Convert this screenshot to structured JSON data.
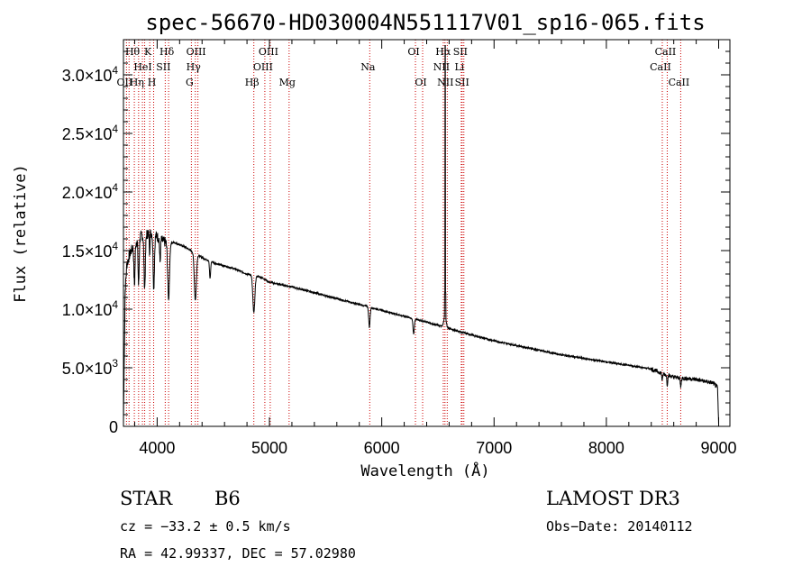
{
  "chart_data": {
    "type": "line",
    "title": "spec-56670-HD030004N551117V01_sp16-065.fits",
    "xlabel": "Wavelength (Å)",
    "ylabel": "Flux (relative)",
    "xlim": [
      3700,
      9100
    ],
    "ylim": [
      0,
      33000
    ],
    "x_ticks": [
      4000,
      5000,
      6000,
      7000,
      8000,
      9000
    ],
    "y_ticks": [
      {
        "value": 0,
        "mantissa": "0",
        "exp": ""
      },
      {
        "value": 5000,
        "mantissa": "5.0×10",
        "exp": "3"
      },
      {
        "value": 10000,
        "mantissa": "1.0×10",
        "exp": "4"
      },
      {
        "value": 15000,
        "mantissa": "1.5×10",
        "exp": "4"
      },
      {
        "value": 20000,
        "mantissa": "2.0×10",
        "exp": "4"
      },
      {
        "value": 25000,
        "mantissa": "2.5×10",
        "exp": "4"
      },
      {
        "value": 30000,
        "mantissa": "3.0×10",
        "exp": "4"
      }
    ],
    "continuum": [
      [
        3700,
        200
      ],
      [
        3705,
        4000
      ],
      [
        3715,
        11500
      ],
      [
        3730,
        13800
      ],
      [
        3760,
        14800
      ],
      [
        3800,
        15600
      ],
      [
        3850,
        16200
      ],
      [
        3900,
        16400
      ],
      [
        3950,
        16500
      ],
      [
        4000,
        16200
      ],
      [
        4050,
        15800
      ],
      [
        4100,
        15600
      ],
      [
        4150,
        15700
      ],
      [
        4200,
        15500
      ],
      [
        4250,
        15300
      ],
      [
        4300,
        15000
      ],
      [
        4350,
        14700
      ],
      [
        4400,
        14400
      ],
      [
        4450,
        14200
      ],
      [
        4500,
        14000
      ],
      [
        4550,
        13800
      ],
      [
        4600,
        13700
      ],
      [
        4650,
        13550
      ],
      [
        4700,
        13400
      ],
      [
        4750,
        13200
      ],
      [
        4800,
        13000
      ],
      [
        4860,
        12900
      ],
      [
        4900,
        12800
      ],
      [
        4950,
        12600
      ],
      [
        5000,
        12300
      ],
      [
        5200,
        11900
      ],
      [
        5400,
        11400
      ],
      [
        5600,
        10900
      ],
      [
        5800,
        10400
      ],
      [
        6000,
        9900
      ],
      [
        6200,
        9400
      ],
      [
        6400,
        8900
      ],
      [
        6600,
        8350
      ],
      [
        6800,
        7800
      ],
      [
        7000,
        7300
      ],
      [
        7200,
        6900
      ],
      [
        7400,
        6500
      ],
      [
        7600,
        6100
      ],
      [
        7800,
        5800
      ],
      [
        8000,
        5500
      ],
      [
        8200,
        5200
      ],
      [
        8400,
        4900
      ],
      [
        8500,
        4500
      ],
      [
        8600,
        4200
      ],
      [
        8800,
        4000
      ],
      [
        8950,
        3700
      ],
      [
        8990,
        3300
      ],
      [
        9000,
        200
      ]
    ],
    "absorption_lines": [
      {
        "center": 3798,
        "depth": 3500,
        "width": 5
      },
      {
        "center": 3835,
        "depth": 4000,
        "width": 5
      },
      {
        "center": 3889,
        "depth": 4500,
        "width": 6
      },
      {
        "center": 3933,
        "depth": 1500,
        "width": 3
      },
      {
        "center": 3970,
        "depth": 4500,
        "width": 6
      },
      {
        "center": 4026,
        "depth": 2000,
        "width": 4
      },
      {
        "center": 4102,
        "depth": 4800,
        "width": 8
      },
      {
        "center": 4340,
        "depth": 4000,
        "width": 9
      },
      {
        "center": 4471,
        "depth": 1500,
        "width": 5
      },
      {
        "center": 4861,
        "depth": 3200,
        "width": 9
      },
      {
        "center": 5890,
        "depth": 1700,
        "width": 6
      },
      {
        "center": 6284,
        "depth": 1300,
        "width": 6
      },
      {
        "center": 6563,
        "depth": -1000,
        "width": 10
      },
      {
        "center": 8498,
        "depth": 600,
        "width": 4
      },
      {
        "center": 8542,
        "depth": 800,
        "width": 4
      },
      {
        "center": 8662,
        "depth": 800,
        "width": 4
      }
    ],
    "spike": {
      "wavelength": 6565,
      "peak": 32500,
      "base": 8400
    },
    "spectral_lines": [
      {
        "wavelength": 3727,
        "label": "OII",
        "row": 2
      },
      {
        "wavelength": 3750,
        "label": "",
        "row": 0
      },
      {
        "wavelength": 3797,
        "label": "Hθ",
        "row": 0
      },
      {
        "wavelength": 3835,
        "label": "Hη",
        "row": 2
      },
      {
        "wavelength": 3869,
        "label": "",
        "row": 0
      },
      {
        "wavelength": 3889,
        "label": "HeI",
        "row": 1
      },
      {
        "wavelength": 3934,
        "label": "K",
        "row": 0
      },
      {
        "wavelength": 3969,
        "label": "H",
        "row": 2
      },
      {
        "wavelength": 4072,
        "label": "SII",
        "row": 1
      },
      {
        "wavelength": 4102,
        "label": "Hδ",
        "row": 0
      },
      {
        "wavelength": 4305,
        "label": "G",
        "row": 2
      },
      {
        "wavelength": 4340,
        "label": "Hγ",
        "row": 1
      },
      {
        "wavelength": 4363,
        "label": "OIII",
        "row": 0
      },
      {
        "wavelength": 4861,
        "label": "Hβ",
        "row": 2
      },
      {
        "wavelength": 4959,
        "label": "OIII",
        "row": 1
      },
      {
        "wavelength": 5007,
        "label": "OIII",
        "row": 0
      },
      {
        "wavelength": 5175,
        "label": "Mg",
        "row": 2
      },
      {
        "wavelength": 5893,
        "label": "Na",
        "row": 1
      },
      {
        "wavelength": 6300,
        "label": "OI",
        "row": 0
      },
      {
        "wavelength": 6364,
        "label": "OI",
        "row": 2
      },
      {
        "wavelength": 6548,
        "label": "NII",
        "row": 1
      },
      {
        "wavelength": 6563,
        "label": "Hα",
        "row": 0
      },
      {
        "wavelength": 6583,
        "label": "NII",
        "row": 2
      },
      {
        "wavelength": 6716,
        "label": "SII",
        "row": 0
      },
      {
        "wavelength": 6731,
        "label": "SII",
        "row": 2
      },
      {
        "wavelength": 6708,
        "label": "Li",
        "row": 1
      },
      {
        "wavelength": 8498,
        "label": "CaII",
        "row": 1
      },
      {
        "wavelength": 8542,
        "label": "CaII",
        "row": 0
      },
      {
        "wavelength": 8662,
        "label": "CaII",
        "row": 2
      }
    ],
    "grid": false
  },
  "info": {
    "object_class": "STAR",
    "subclass": "B6",
    "survey": "LAMOST DR3",
    "cz": "cz = −33.2 ± 0.5 km/s",
    "obs_date": "Obs−Date: 20140112",
    "coords": "RA =  42.99337, DEC =  57.02980"
  },
  "colors": {
    "spectrum": "#000000",
    "line_marker": "#cc0000",
    "axis": "#000000"
  }
}
